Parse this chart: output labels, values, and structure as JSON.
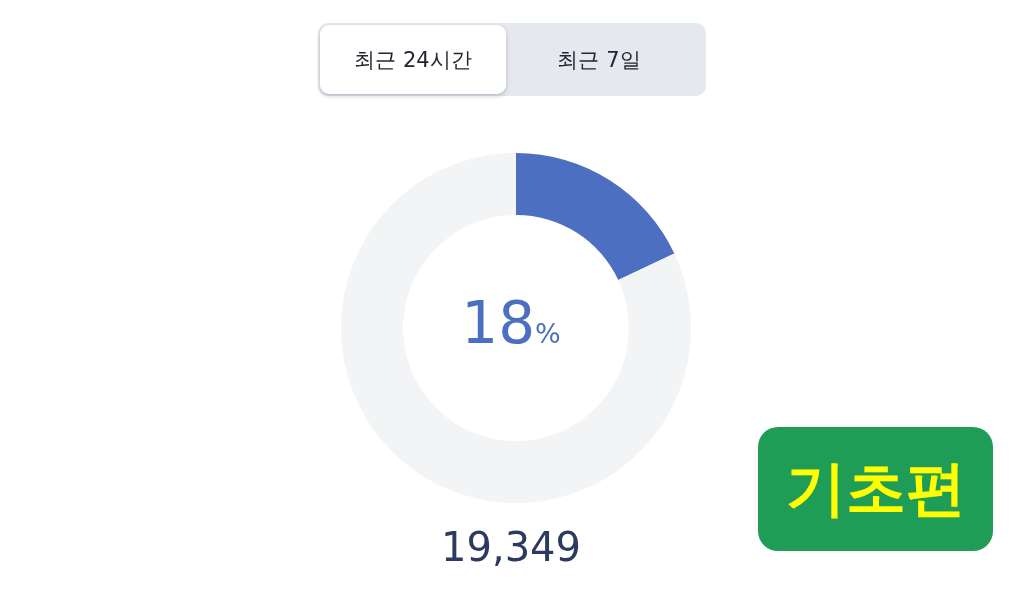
{
  "chart_data": {
    "type": "donut",
    "categories": [
      null,
      null
    ],
    "values": [
      18,
      82
    ],
    "colors": [
      "#4d6fc2",
      "#f2f4f6"
    ],
    "annotations": [
      "최근 24시간",
      "최근 7일",
      "18%",
      "19,349",
      "기초편"
    ]
  }
}
